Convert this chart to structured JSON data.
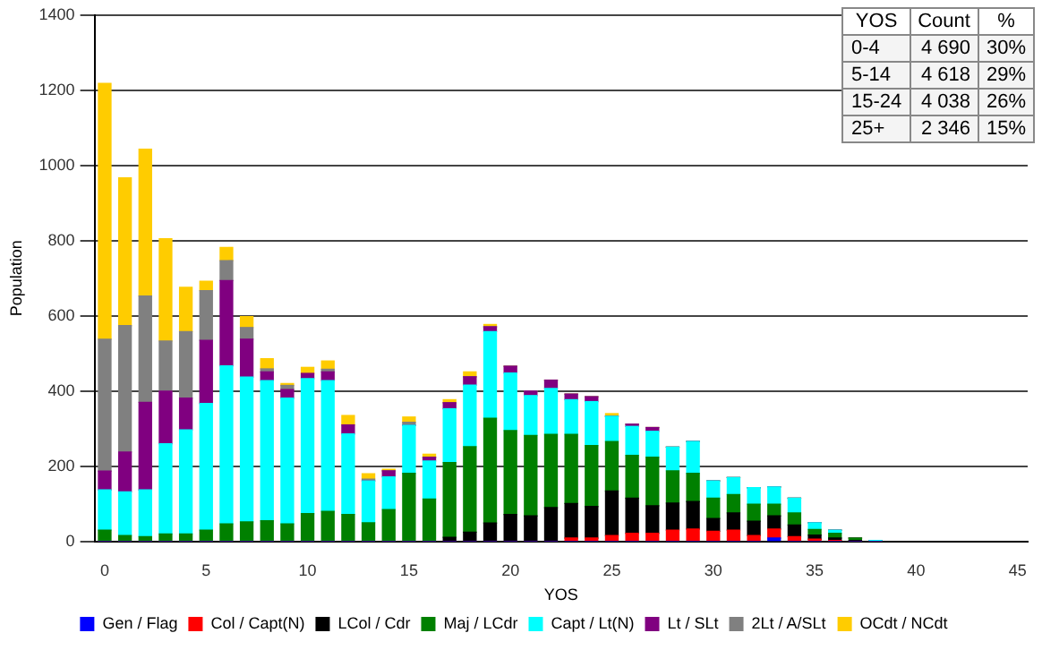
{
  "chart_data": {
    "type": "bar",
    "stacked": true,
    "xlabel": "YOS",
    "ylabel": "Population",
    "x": [
      0,
      1,
      2,
      3,
      4,
      5,
      6,
      7,
      8,
      9,
      10,
      11,
      12,
      13,
      14,
      15,
      16,
      17,
      18,
      19,
      20,
      21,
      22,
      23,
      24,
      25,
      26,
      27,
      28,
      29,
      30,
      31,
      32,
      33,
      34,
      35,
      36,
      37,
      38
    ],
    "xlim": [
      -0.5,
      45.5
    ],
    "xticks": [
      0,
      5,
      10,
      15,
      20,
      25,
      30,
      35,
      40,
      45
    ],
    "ylim": [
      0,
      1400
    ],
    "yticks": [
      0,
      200,
      400,
      600,
      800,
      1000,
      1200,
      1400
    ],
    "grid": "y",
    "legend": "bottom",
    "annotations": [
      "YOS",
      "Count",
      "%",
      "0-4",
      "4 690",
      "30%",
      "5-14",
      "4 618",
      "29%",
      "15-24",
      "4 038",
      "26%",
      "25+",
      "2 346",
      "15%"
    ],
    "series": [
      {
        "name": "Gen / Flag",
        "color": "#0000ff",
        "values": [
          0,
          0,
          0,
          0,
          0,
          0,
          0,
          0,
          0,
          0,
          0,
          0,
          0,
          0,
          0,
          0,
          0,
          0,
          0,
          0,
          0,
          0,
          0,
          0,
          0,
          0,
          0,
          0,
          0,
          0,
          0,
          0,
          0,
          9,
          0,
          0,
          0,
          0,
          0
        ]
      },
      {
        "name": "Col / Capt(N)",
        "color": "#ff0000",
        "values": [
          0,
          0,
          0,
          0,
          0,
          0,
          0,
          0,
          0,
          0,
          0,
          0,
          0,
          0,
          0,
          0,
          0,
          0,
          0,
          0,
          0,
          0,
          0,
          9,
          9,
          16,
          22,
          22,
          30,
          33,
          27,
          30,
          16,
          24,
          13,
          6,
          3,
          0,
          0
        ]
      },
      {
        "name": "LCol / Cdr",
        "color": "#000000",
        "values": [
          0,
          0,
          0,
          0,
          0,
          0,
          0,
          0,
          0,
          0,
          0,
          0,
          0,
          0,
          0,
          0,
          0,
          11,
          25,
          49,
          72,
          68,
          90,
          92,
          84,
          118,
          93,
          73,
          72,
          73,
          34,
          46,
          38,
          35,
          31,
          11,
          6,
          3,
          0
        ]
      },
      {
        "name": "Maj / LCdr",
        "color": "#008000",
        "values": [
          30,
          16,
          13,
          20,
          20,
          30,
          47,
          52,
          55,
          47,
          74,
          80,
          72,
          50,
          85,
          181,
          113,
          199,
          227,
          279,
          223,
          214,
          195,
          184,
          162,
          132,
          114,
          129,
          86,
          75,
          54,
          49,
          45,
          31,
          32,
          15,
          13,
          6,
          0
        ]
      },
      {
        "name": "Capt / Lt(N)",
        "color": "#00ffff",
        "values": [
          107,
          116,
          124,
          240,
          277,
          337,
          420,
          385,
          373,
          334,
          359,
          348,
          214,
          111,
          87,
          128,
          101,
          143,
          164,
          230,
          153,
          106,
          122,
          92,
          117,
          67,
          77,
          69,
          63,
          85,
          46,
          45,
          44,
          46,
          39,
          18,
          8,
          null,
          3
        ]
      },
      {
        "name": "Lt / SLt",
        "color": "#800080",
        "values": [
          50,
          106,
          233,
          140,
          84,
          168,
          227,
          101,
          23,
          23,
          14,
          23,
          24,
          0,
          16,
          0,
          10,
          16,
          22,
          13,
          18,
          12,
          22,
          15,
          13,
          0,
          6,
          10,
          0,
          0,
          0,
          0,
          0,
          0,
          0,
          0,
          0,
          0,
          0
        ]
      },
      {
        "name": "2Lt / A/SLt",
        "color": "#808080",
        "values": [
          351,
          336,
          283,
          133,
          177,
          132,
          53,
          31,
          8,
          11,
          null,
          7,
          null,
          5,
          0,
          8,
          0,
          0,
          0,
          0,
          0,
          0,
          0,
          0,
          0,
          0,
          0,
          0,
          0,
          0,
          0,
          0,
          0,
          0,
          0,
          0,
          0,
          0,
          0
        ]
      },
      {
        "name": "OCdt / NCdt",
        "color": "#ffcc00",
        "values": [
          680,
          393,
          390,
          272,
          118,
          25,
          35,
          29,
          27,
          5,
          16,
          22,
          25,
          14,
          4,
          14,
          8,
          8,
          13,
          6,
          0,
          0,
          0,
          0,
          0,
          7,
          0,
          0,
          0,
          0,
          0,
          0,
          0,
          0,
          0,
          0,
          0,
          0,
          0
        ]
      }
    ]
  }
}
